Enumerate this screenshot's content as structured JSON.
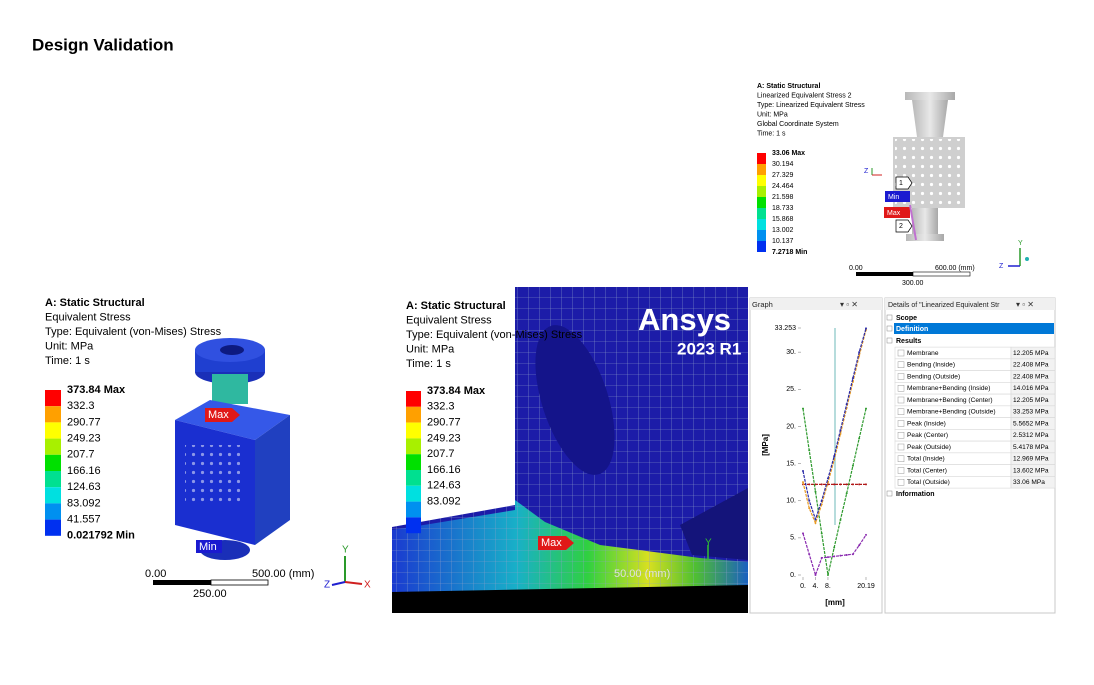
{
  "header": {
    "title": "Design Validation"
  },
  "panel_1": {
    "info": [
      "A: Static Structural",
      "Equivalent Stress",
      "Type: Equivalent (von-Mises) Stress",
      "Unit: MPa",
      "Time: 1 s"
    ],
    "legend": [
      "373.84 Max",
      "332.3",
      "290.77",
      "249.23",
      "207.7",
      "166.16",
      "124.63",
      "83.092",
      "41.557",
      "0.021792 Min"
    ],
    "markers": [
      "Max",
      "Min"
    ],
    "scale": [
      "0.00",
      "500.00 (mm)",
      "250.00"
    ],
    "axes": [
      "Y",
      "Z",
      "X"
    ]
  },
  "panel_2": {
    "info": [
      "A: Static Structural",
      "Equivalent Stress",
      "Type: Equivalent (von-Mises) Stress",
      "Unit: MPa",
      "Time: 1 s"
    ],
    "legend": [
      "373.84 Max",
      "332.3",
      "290.77",
      "249.23",
      "207.7",
      "166.16",
      "124.63",
      "83.092"
    ],
    "markers": [
      "Max"
    ],
    "logo": [
      "Ansys",
      "2023 R1"
    ],
    "scale": [
      "50.00 (mm)"
    ],
    "axes": [
      "Y"
    ]
  },
  "panel_3": {
    "info": [
      "A: Static Structural",
      "Linearized Equivalent Stress 2",
      "Type: Linearized Equivalent Stress",
      "Unit: MPa",
      "Global Coordinate System",
      "Time: 1 s"
    ],
    "legend": [
      "33.06 Max",
      "30.194",
      "27.329",
      "24.464",
      "21.598",
      "18.733",
      "15.868",
      "13.002",
      "10.137",
      "7.2718 Min"
    ],
    "markers": [
      "1",
      "Min",
      "Max",
      "2"
    ],
    "scale": [
      "0.00",
      "600.00 (mm)",
      "300.00"
    ],
    "axes": [
      "Z",
      "Y",
      "Z"
    ]
  },
  "graph": {
    "title": "Graph",
    "type": "line",
    "x_label": "[mm]",
    "y_label": "[MPa]",
    "x": [
      0,
      2,
      4,
      6,
      8,
      10,
      12,
      14,
      16,
      18,
      20.19
    ],
    "xlim": [
      0,
      20.19
    ],
    "ylim": [
      0,
      33.253
    ],
    "xticks": [
      {
        "value": 0,
        "label": "0."
      },
      {
        "value": 4,
        "label": "4."
      },
      {
        "value": 8,
        "label": "8."
      },
      20.19
    ],
    "yticks": [
      {
        "value": 0,
        "label": "0."
      },
      {
        "value": 5,
        "label": "5."
      },
      {
        "value": 10,
        "label": "10."
      },
      {
        "value": 15,
        "label": "15."
      },
      {
        "value": 20,
        "label": "20."
      },
      {
        "value": 25,
        "label": "25."
      },
      {
        "value": 30,
        "label": "30."
      },
      33.253
    ],
    "series": [
      {
        "color": "#b01818",
        "values": [
          12.2,
          12.2,
          12.2,
          12.2,
          12.2,
          12.2,
          12.2,
          12.2,
          12.2,
          12.2,
          12.2
        ]
      },
      {
        "color": "#2e9a2e",
        "values": [
          22.4,
          16.8,
          11.2,
          5.6,
          0,
          3.7,
          7.4,
          11,
          14.7,
          18.4,
          22.4
        ]
      },
      {
        "color": "#e89a20",
        "values": [
          12.5,
          9,
          7,
          9.5,
          12.5,
          15.5,
          19,
          22.5,
          26,
          29.5,
          33
        ]
      },
      {
        "color": "#2a2aa8",
        "values": [
          14,
          10,
          7.5,
          10,
          13,
          16,
          19.5,
          23,
          26.5,
          30,
          33.2
        ]
      },
      {
        "color": "#8a2bb0",
        "values": [
          5.6,
          2.8,
          0,
          2.3,
          2.4,
          2.5,
          2.6,
          2.7,
          2.8,
          4,
          5.4
        ]
      }
    ]
  },
  "details": {
    "title": "Details of \"Linearized Equivalent Str",
    "groups": [
      "Scope",
      "Definition",
      "Results",
      "Information"
    ],
    "rows": [
      [
        "Membrane",
        "12.205 MPa"
      ],
      [
        "Bending (Inside)",
        "22.408 MPa"
      ],
      [
        "Bending (Outside)",
        "22.408 MPa"
      ],
      [
        "Membrane+Bending (Inside)",
        "14.016 MPa"
      ],
      [
        "Membrane+Bending (Center)",
        "12.205 MPa"
      ],
      [
        "Membrane+Bending (Outside)",
        "33.253 MPa"
      ],
      [
        "Peak (Inside)",
        "5.5652 MPa"
      ],
      [
        "Peak (Center)",
        "2.5312 MPa"
      ],
      [
        "Peak (Outside)",
        "5.4178 MPa"
      ],
      [
        "Total (Inside)",
        "12.969 MPa"
      ],
      [
        "Total (Center)",
        "13.602 MPa"
      ],
      [
        "Total (Outside)",
        "33.06 MPa"
      ]
    ]
  }
}
